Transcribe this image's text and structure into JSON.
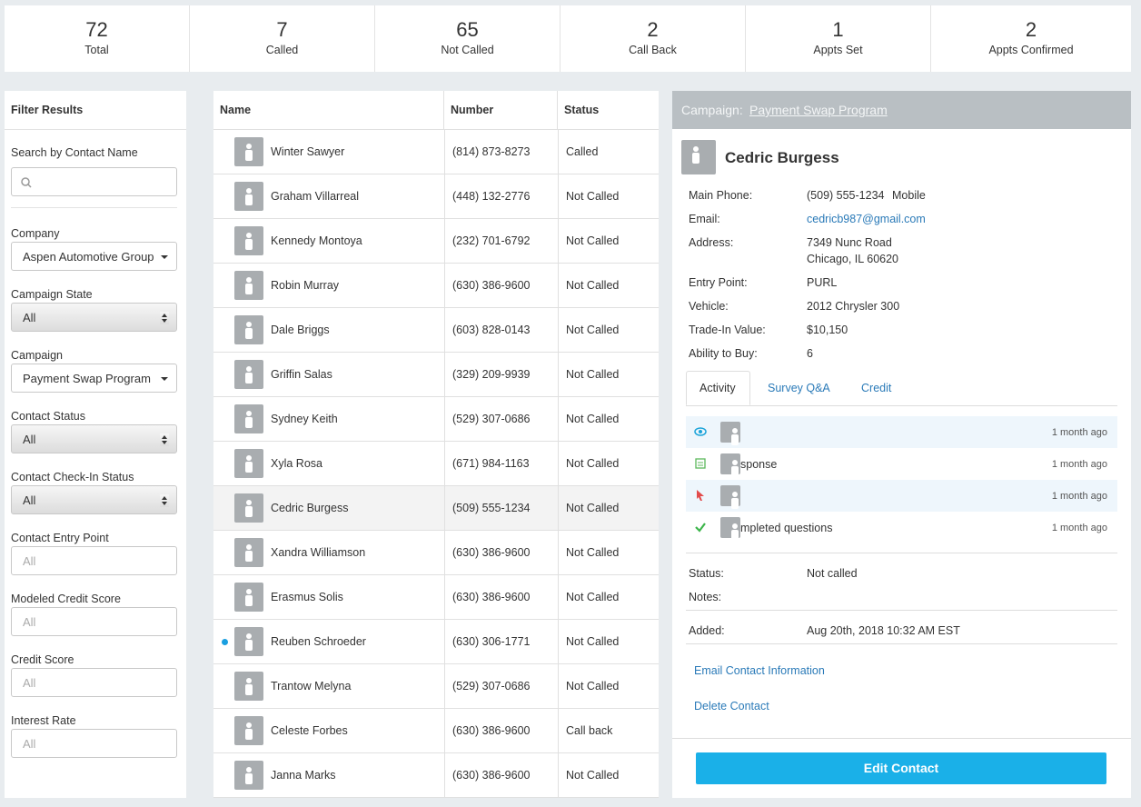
{
  "stats": [
    {
      "value": 72,
      "label": "Total"
    },
    {
      "value": 7,
      "label": "Called"
    },
    {
      "value": 65,
      "label": "Not Called"
    },
    {
      "value": 2,
      "label": "Call Back"
    },
    {
      "value": 1,
      "label": "Appts Set"
    },
    {
      "value": 2,
      "label": "Appts Confirmed"
    }
  ],
  "filters": {
    "title": "Filter Results",
    "search_label": "Search by Contact Name",
    "fields": [
      {
        "label": "Company",
        "value": "Aspen Automotive Group"
      },
      {
        "label": "Campaign State",
        "value": "All"
      },
      {
        "label": "Campaign",
        "value": "Payment Swap Program"
      },
      {
        "label": "Contact Status",
        "value": "All"
      },
      {
        "label": "Contact Check-In Status",
        "value": "All"
      },
      {
        "label": "Contact Entry Point",
        "value": "All"
      },
      {
        "label": "Modeled Credit Score",
        "value": "All"
      },
      {
        "label": "Credit Score",
        "value": "All"
      },
      {
        "label": "Interest Rate",
        "value": "All"
      }
    ]
  },
  "table": {
    "headers": [
      "Name",
      "Number",
      "Status"
    ],
    "rows": [
      [
        "Winter Sawyer",
        "(814) 873-8273",
        "Called"
      ],
      [
        "Graham Villarreal",
        "(448) 132-2776",
        "Not Called"
      ],
      [
        "Kennedy Montoya",
        "(232) 701-6792",
        "Not Called"
      ],
      [
        "Robin Murray",
        "(630) 386-9600",
        "Not Called"
      ],
      [
        "Dale Briggs",
        "(603) 828-0143",
        "Not Called"
      ],
      [
        "Griffin Salas",
        "(329) 209-9939",
        "Not Called"
      ],
      [
        "Sydney Keith",
        "(529) 307-0686",
        "Not Called"
      ],
      [
        "Xyla Rosa",
        "(671) 984-1163",
        "Not Called"
      ],
      [
        "Cedric Burgess",
        "(509) 555-1234",
        "Not Called"
      ],
      [
        "Xandra Williamson",
        "(630) 386-9600",
        "Not Called"
      ],
      [
        "Erasmus Solis",
        "(630) 386-9600",
        "Not Called"
      ],
      [
        "Reuben Schroeder",
        "(630) 306-1771",
        "Not Called"
      ],
      [
        "Trantow Melyna",
        "(529) 307-0686",
        "Not Called"
      ],
      [
        "Celeste Forbes",
        "(630) 386-9600",
        "Call back"
      ],
      [
        "Janna Marks",
        "(630) 386-9600",
        "Not Called"
      ]
    ]
  },
  "detail": {
    "campaign_label": "Campaign:",
    "campaign": "Payment Swap Program",
    "name": "Cedric Burgess",
    "fields": [
      {
        "label": "Main Phone:",
        "value": "(509) 555-1234",
        "extra": "Mobile"
      },
      {
        "label": "Email:",
        "value": "cedricb987@gmail.com"
      },
      {
        "label": "Address:",
        "value": "7349 Nunc Road",
        "extra": "Chicago, IL 60620"
      },
      {
        "label": "Entry Point:",
        "value": "PURL"
      },
      {
        "label": "Vehicle:",
        "value": "2012 Chrysler 300"
      },
      {
        "label": "Trade-In Value:",
        "value": "$10,150"
      },
      {
        "label": "Ability to Buy:",
        "value": "6"
      }
    ],
    "tabs": [
      "Activity",
      "Survey Q&A",
      "Credit"
    ],
    "activity": [
      {
        "text": null,
        "time": "1 month ago"
      },
      {
        "text": "sponse",
        "time": "1 month ago"
      },
      {
        "text": null,
        "time": "1 month ago"
      },
      {
        "text": "mpleted questions",
        "time": "1 month ago"
      }
    ],
    "status_label": "Status:",
    "status": "Not called",
    "notes_label": "Notes:",
    "added_label": "Added:",
    "added": "Aug 20th, 2018 10:32 AM EST",
    "links": [
      "Email Contact Information",
      "Delete Contact"
    ],
    "button": "Edit Contact"
  }
}
